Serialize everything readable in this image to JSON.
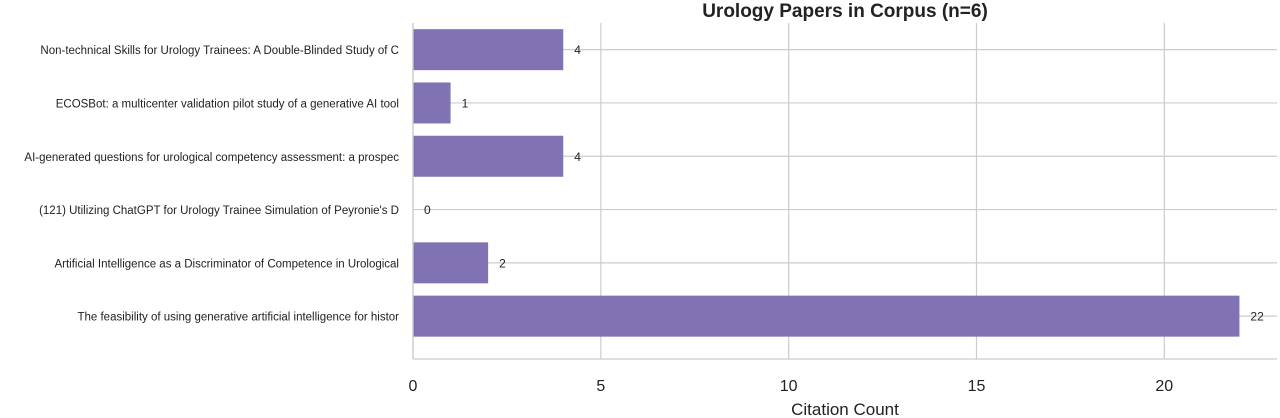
{
  "chart_data": {
    "type": "bar",
    "orientation": "horizontal",
    "title": "Urology Papers in Corpus (n=6)",
    "xlabel": "Citation Count",
    "ylabel": "",
    "xlim": [
      0,
      23
    ],
    "xticks": [
      0,
      5,
      10,
      15,
      20
    ],
    "grid": true,
    "bar_color": "#8173b3",
    "categories": [
      "Non-technical Skills for Urology Trainees: A Double-Blinded Study of C",
      "ECOSBot: a multicenter validation pilot study of a generative AI tool",
      "AI-generated questions for urological competency assessment: a prospec",
      "(121) Utilizing ChatGPT for Urology Trainee Simulation of Peyronie's D",
      "Artificial Intelligence as a Discriminator of Competence in Urological",
      "The feasibility of using generative artificial intelligence for histor"
    ],
    "values": [
      4,
      1,
      4,
      0,
      2,
      22
    ],
    "data_labels": [
      "4",
      "1",
      "4",
      "0",
      "2",
      "22"
    ]
  }
}
